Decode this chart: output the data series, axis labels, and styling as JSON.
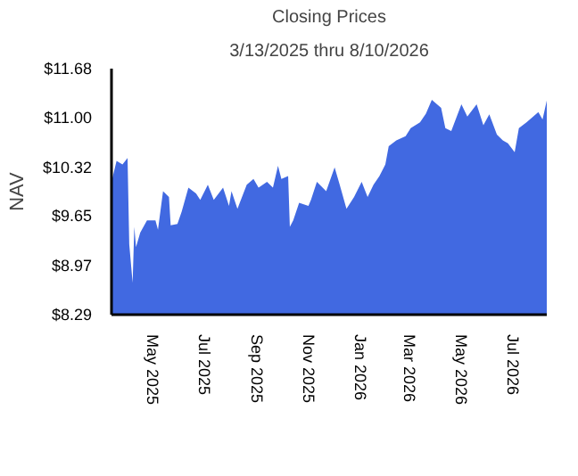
{
  "chart_data": {
    "type": "area",
    "title": "Closing Prices",
    "subtitle": "3/13/2025 thru 8/10/2026",
    "ylabel": "NAV",
    "x": [
      "2025-03-13",
      "2025-03-19",
      "2025-03-26",
      "2025-04-01",
      "2025-04-03",
      "2025-04-07",
      "2025-04-09",
      "2025-04-11",
      "2025-04-16",
      "2025-04-24",
      "2025-05-04",
      "2025-05-07",
      "2025-05-13",
      "2025-05-20",
      "2025-05-22",
      "2025-05-30",
      "2025-06-04",
      "2025-06-12",
      "2025-06-21",
      "2025-06-26",
      "2025-07-05",
      "2025-07-12",
      "2025-07-23",
      "2025-07-30",
      "2025-08-02",
      "2025-08-09",
      "2025-08-20",
      "2025-08-28",
      "2025-09-03",
      "2025-09-13",
      "2025-09-20",
      "2025-09-26",
      "2025-09-30",
      "2025-10-08",
      "2025-10-10",
      "2025-10-14",
      "2025-10-21",
      "2025-11-01",
      "2025-11-04",
      "2025-11-11",
      "2025-11-22",
      "2025-12-02",
      "2025-12-08",
      "2025-12-16",
      "2025-12-25",
      "2026-01-03",
      "2026-01-10",
      "2026-01-17",
      "2026-01-24",
      "2026-01-31",
      "2026-02-04",
      "2026-02-13",
      "2026-02-24",
      "2026-03-02",
      "2026-03-13",
      "2026-03-20",
      "2026-03-27",
      "2026-04-07",
      "2026-04-12",
      "2026-04-19",
      "2026-05-01",
      "2026-05-08",
      "2026-05-19",
      "2026-05-27",
      "2026-06-03",
      "2026-06-12",
      "2026-06-19",
      "2026-06-25",
      "2026-07-03",
      "2026-07-08",
      "2026-07-17",
      "2026-07-31",
      "2026-08-05",
      "2026-08-10"
    ],
    "series": [
      {
        "color": "#4169e1",
        "values": [
          10.12,
          10.41,
          10.36,
          10.45,
          9.26,
          8.73,
          9.5,
          9.22,
          9.42,
          9.59,
          9.59,
          9.46,
          9.99,
          9.91,
          9.52,
          9.54,
          9.71,
          10.04,
          9.96,
          9.87,
          10.08,
          9.87,
          10.04,
          9.79,
          9.99,
          9.75,
          10.08,
          10.16,
          10.04,
          10.12,
          10.04,
          10.34,
          10.16,
          10.2,
          9.5,
          9.59,
          9.83,
          9.79,
          9.87,
          10.12,
          9.99,
          10.32,
          10.08,
          9.75,
          9.91,
          10.12,
          9.91,
          10.08,
          10.2,
          10.36,
          10.61,
          10.69,
          10.75,
          10.86,
          10.94,
          11.06,
          11.25,
          11.14,
          10.86,
          10.82,
          11.19,
          11.02,
          11.19,
          10.9,
          11.05,
          10.77,
          10.69,
          10.65,
          10.53,
          10.86,
          10.94,
          11.08,
          10.98,
          11.24
        ]
      }
    ],
    "xlim": [
      "2025-03-13",
      "2026-08-10"
    ],
    "xticks": [
      {
        "value": "2025-05-01",
        "label": "May 2025"
      },
      {
        "value": "2025-07-01",
        "label": "Jul 2025"
      },
      {
        "value": "2025-09-01",
        "label": "Sep 2025"
      },
      {
        "value": "2025-11-01",
        "label": "Nov 2025"
      },
      {
        "value": "2026-01-01",
        "label": "Jan 2026"
      },
      {
        "value": "2026-03-01",
        "label": "Mar 2026"
      },
      {
        "value": "2026-05-01",
        "label": "May 2026"
      },
      {
        "value": "2026-07-01",
        "label": "Jul 2026"
      }
    ],
    "ylim": [
      8.29,
      11.68
    ],
    "yticks": [
      {
        "value": 8.29,
        "label": "$8.29"
      },
      {
        "value": 8.97,
        "label": "$8.97"
      },
      {
        "value": 9.65,
        "label": "$9.65"
      },
      {
        "value": 10.32,
        "label": "$10.32"
      },
      {
        "value": 11.0,
        "label": "$11.00"
      },
      {
        "value": 11.68,
        "label": "$11.68"
      }
    ],
    "grid": false
  }
}
